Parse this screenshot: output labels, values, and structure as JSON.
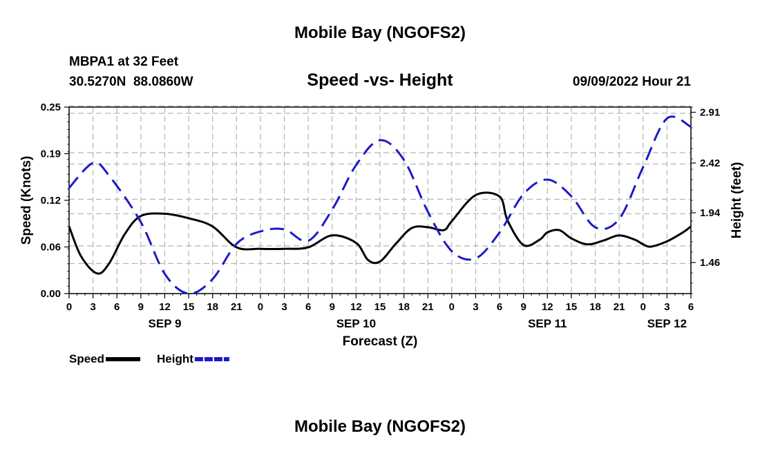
{
  "chart_data": {
    "type": "line",
    "title": "Mobile Bay (NGOFS2)",
    "subtitle": "Speed -vs- Height",
    "station": "MBPA1 at 32 Feet",
    "coordinates": "30.5270N  88.0860W",
    "datetime": "09/09/2022 Hour 21",
    "xlabel": "Forecast (Z)",
    "ylabel": "Speed (Knots)",
    "ylabel_right": "Height (feet)",
    "ylim": [
      0,
      0.25
    ],
    "ylim_right": [
      1.16,
      2.96
    ],
    "grid": true,
    "x_range_hours": [
      0,
      78
    ],
    "x_ticks": [
      "0",
      "3",
      "6",
      "9",
      "12",
      "15",
      "18",
      "21",
      "0",
      "3",
      "6",
      "9",
      "12",
      "15",
      "18",
      "21",
      "0",
      "3",
      "6",
      "9",
      "12",
      "15",
      "18",
      "21",
      "0",
      "3",
      "6"
    ],
    "date_labels": [
      {
        "label": "SEP 9",
        "hour": 12
      },
      {
        "label": "SEP 10",
        "hour": 36
      },
      {
        "label": "SEP 11",
        "hour": 60
      },
      {
        "label": "SEP 12",
        "hour": 75
      }
    ],
    "y_ticks_left": [
      "0.00",
      "0.06",
      "0.12",
      "0.19",
      "0.25"
    ],
    "y_ticks_left_values": [
      0,
      0.0625,
      0.125,
      0.1875,
      0.25
    ],
    "y_ticks_right": [
      "1.46",
      "1.94",
      "2.42",
      "2.91"
    ],
    "y_ticks_right_values": [
      1.46,
      1.94,
      2.42,
      2.91
    ],
    "series": [
      {
        "name": "Speed",
        "axis": "left",
        "color": "#000000",
        "style": "solid",
        "x": [
          0,
          1.5,
          3.5,
          5,
          7,
          9,
          12,
          15,
          18,
          21,
          24,
          27,
          30,
          33,
          36,
          37.5,
          39,
          41,
          43,
          45,
          47,
          48,
          51,
          54,
          55,
          57,
          59,
          60,
          61.5,
          63,
          65,
          67,
          69,
          71,
          72,
          73,
          75,
          77,
          78
        ],
        "values": [
          0.09,
          0.05,
          0.027,
          0.04,
          0.08,
          0.104,
          0.107,
          0.101,
          0.09,
          0.062,
          0.06,
          0.06,
          0.062,
          0.078,
          0.068,
          0.045,
          0.043,
          0.067,
          0.088,
          0.089,
          0.085,
          0.097,
          0.132,
          0.13,
          0.098,
          0.065,
          0.072,
          0.082,
          0.085,
          0.074,
          0.066,
          0.071,
          0.078,
          0.072,
          0.066,
          0.063,
          0.07,
          0.082,
          0.09
        ]
      },
      {
        "name": "Height",
        "axis": "right",
        "color": "#1a1ac8",
        "style": "dashed",
        "x": [
          0,
          3,
          5,
          9,
          12,
          15,
          18,
          21,
          24,
          27,
          30,
          33,
          36,
          39,
          42,
          45,
          48,
          51,
          54,
          57,
          60,
          63,
          66,
          69,
          72,
          75,
          78
        ],
        "values": [
          2.18,
          2.42,
          2.3,
          1.85,
          1.35,
          1.16,
          1.3,
          1.64,
          1.76,
          1.78,
          1.67,
          1.97,
          2.4,
          2.64,
          2.45,
          1.95,
          1.57,
          1.5,
          1.75,
          2.12,
          2.26,
          2.1,
          1.8,
          1.88,
          2.38,
          2.85,
          2.77
        ]
      }
    ],
    "legend": {
      "placement": "bottom-left",
      "items": [
        {
          "label": "Speed",
          "color": "#000000",
          "style": "solid"
        },
        {
          "label": "Height",
          "color": "#1a1ac8",
          "style": "dashed"
        }
      ]
    },
    "footer_title": "Mobile Bay (NGOFS2)"
  }
}
